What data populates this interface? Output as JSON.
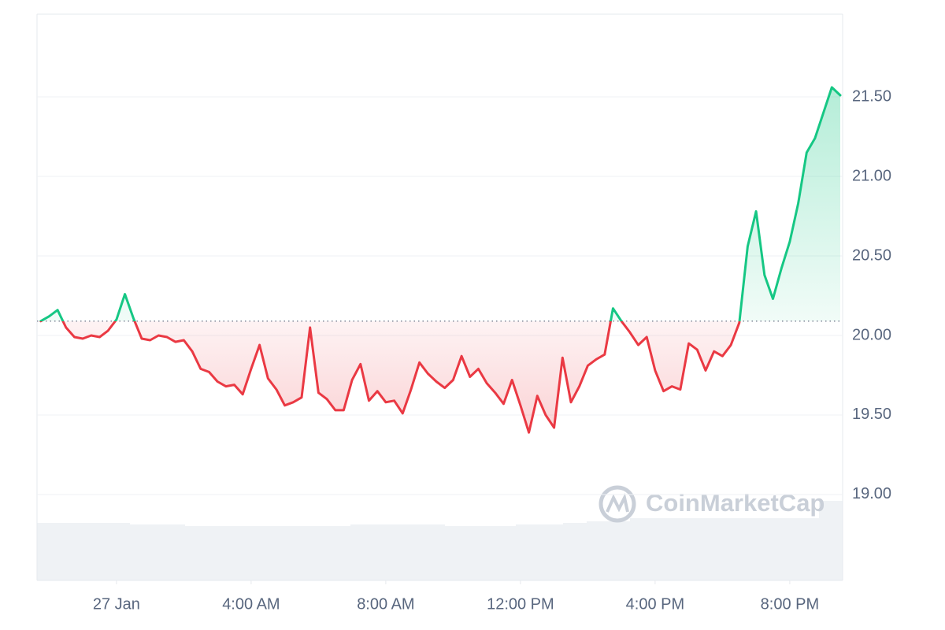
{
  "chart_data": {
    "type": "line",
    "watermark": "CoinMarketCap",
    "x": [
      -2.25,
      -2,
      -1.75,
      -1.5,
      -1.25,
      -1,
      -0.75,
      -0.5,
      -0.25,
      0,
      0.25,
      0.5,
      0.75,
      1,
      1.25,
      1.5,
      1.75,
      2,
      2.25,
      2.5,
      2.75,
      3,
      3.25,
      3.5,
      3.75,
      4,
      4.25,
      4.5,
      4.75,
      5,
      5.25,
      5.5,
      5.75,
      6,
      6.25,
      6.5,
      6.75,
      7,
      7.25,
      7.5,
      7.75,
      8,
      8.25,
      8.5,
      8.75,
      9,
      9.25,
      9.5,
      9.75,
      10,
      10.25,
      10.5,
      10.75,
      11,
      11.25,
      11.5,
      11.75,
      12,
      12.25,
      12.5,
      12.75,
      13,
      13.25,
      13.5,
      13.75,
      14,
      14.25,
      14.5,
      14.75,
      15,
      15.25,
      15.5,
      15.75,
      16,
      16.25,
      16.5,
      16.75,
      17,
      17.25,
      17.5,
      17.75,
      18,
      18.25,
      18.5,
      18.75,
      19,
      19.25,
      19.5,
      19.75,
      20,
      20.25,
      20.5,
      20.75,
      21,
      21.25,
      21.5
    ],
    "values": [
      20.09,
      20.12,
      20.16,
      20.05,
      19.99,
      19.98,
      20.0,
      19.99,
      20.03,
      20.1,
      20.26,
      20.11,
      19.98,
      19.97,
      20.0,
      19.99,
      19.96,
      19.97,
      19.9,
      19.79,
      19.77,
      19.71,
      19.68,
      19.69,
      19.63,
      19.79,
      19.94,
      19.73,
      19.66,
      19.56,
      19.58,
      19.61,
      20.05,
      19.64,
      19.6,
      19.53,
      19.53,
      19.72,
      19.82,
      19.59,
      19.65,
      19.58,
      19.59,
      19.51,
      19.66,
      19.83,
      19.76,
      19.71,
      19.67,
      19.72,
      19.87,
      19.74,
      19.79,
      19.7,
      19.64,
      19.57,
      19.72,
      19.56,
      19.39,
      19.62,
      19.5,
      19.42,
      19.86,
      19.58,
      19.68,
      19.81,
      19.85,
      19.88,
      20.17,
      20.09,
      20.02,
      19.94,
      19.99,
      19.78,
      19.65,
      19.68,
      19.66,
      19.95,
      19.91,
      19.78,
      19.9,
      19.87,
      19.94,
      20.08,
      20.56,
      20.78,
      20.38,
      20.23,
      20.42,
      20.59,
      20.83,
      21.15,
      21.24,
      21.4,
      21.56,
      21.51
    ],
    "baseline": 20.09,
    "up_color": "#16c784",
    "down_color": "#ea3943",
    "xlim": [
      -2.36,
      21.57
    ],
    "ylim": [
      18.46,
      22.02
    ],
    "xticks": [
      {
        "value": 0,
        "label": "27 Jan"
      },
      {
        "value": 4,
        "label": "4:00 AM"
      },
      {
        "value": 8,
        "label": "8:00 AM"
      },
      {
        "value": 12,
        "label": "12:00 PM"
      },
      {
        "value": 16,
        "label": "4:00 PM"
      },
      {
        "value": 20,
        "label": "8:00 PM"
      }
    ],
    "yticks": [
      {
        "value": 19,
        "label": "19.00"
      },
      {
        "value": 19.5,
        "label": "19.50"
      },
      {
        "value": 20,
        "label": "20.00"
      },
      {
        "value": 20.5,
        "label": "20.50"
      },
      {
        "value": 21,
        "label": "21.00"
      },
      {
        "value": 21.5,
        "label": "21.50"
      }
    ],
    "grid": true
  }
}
